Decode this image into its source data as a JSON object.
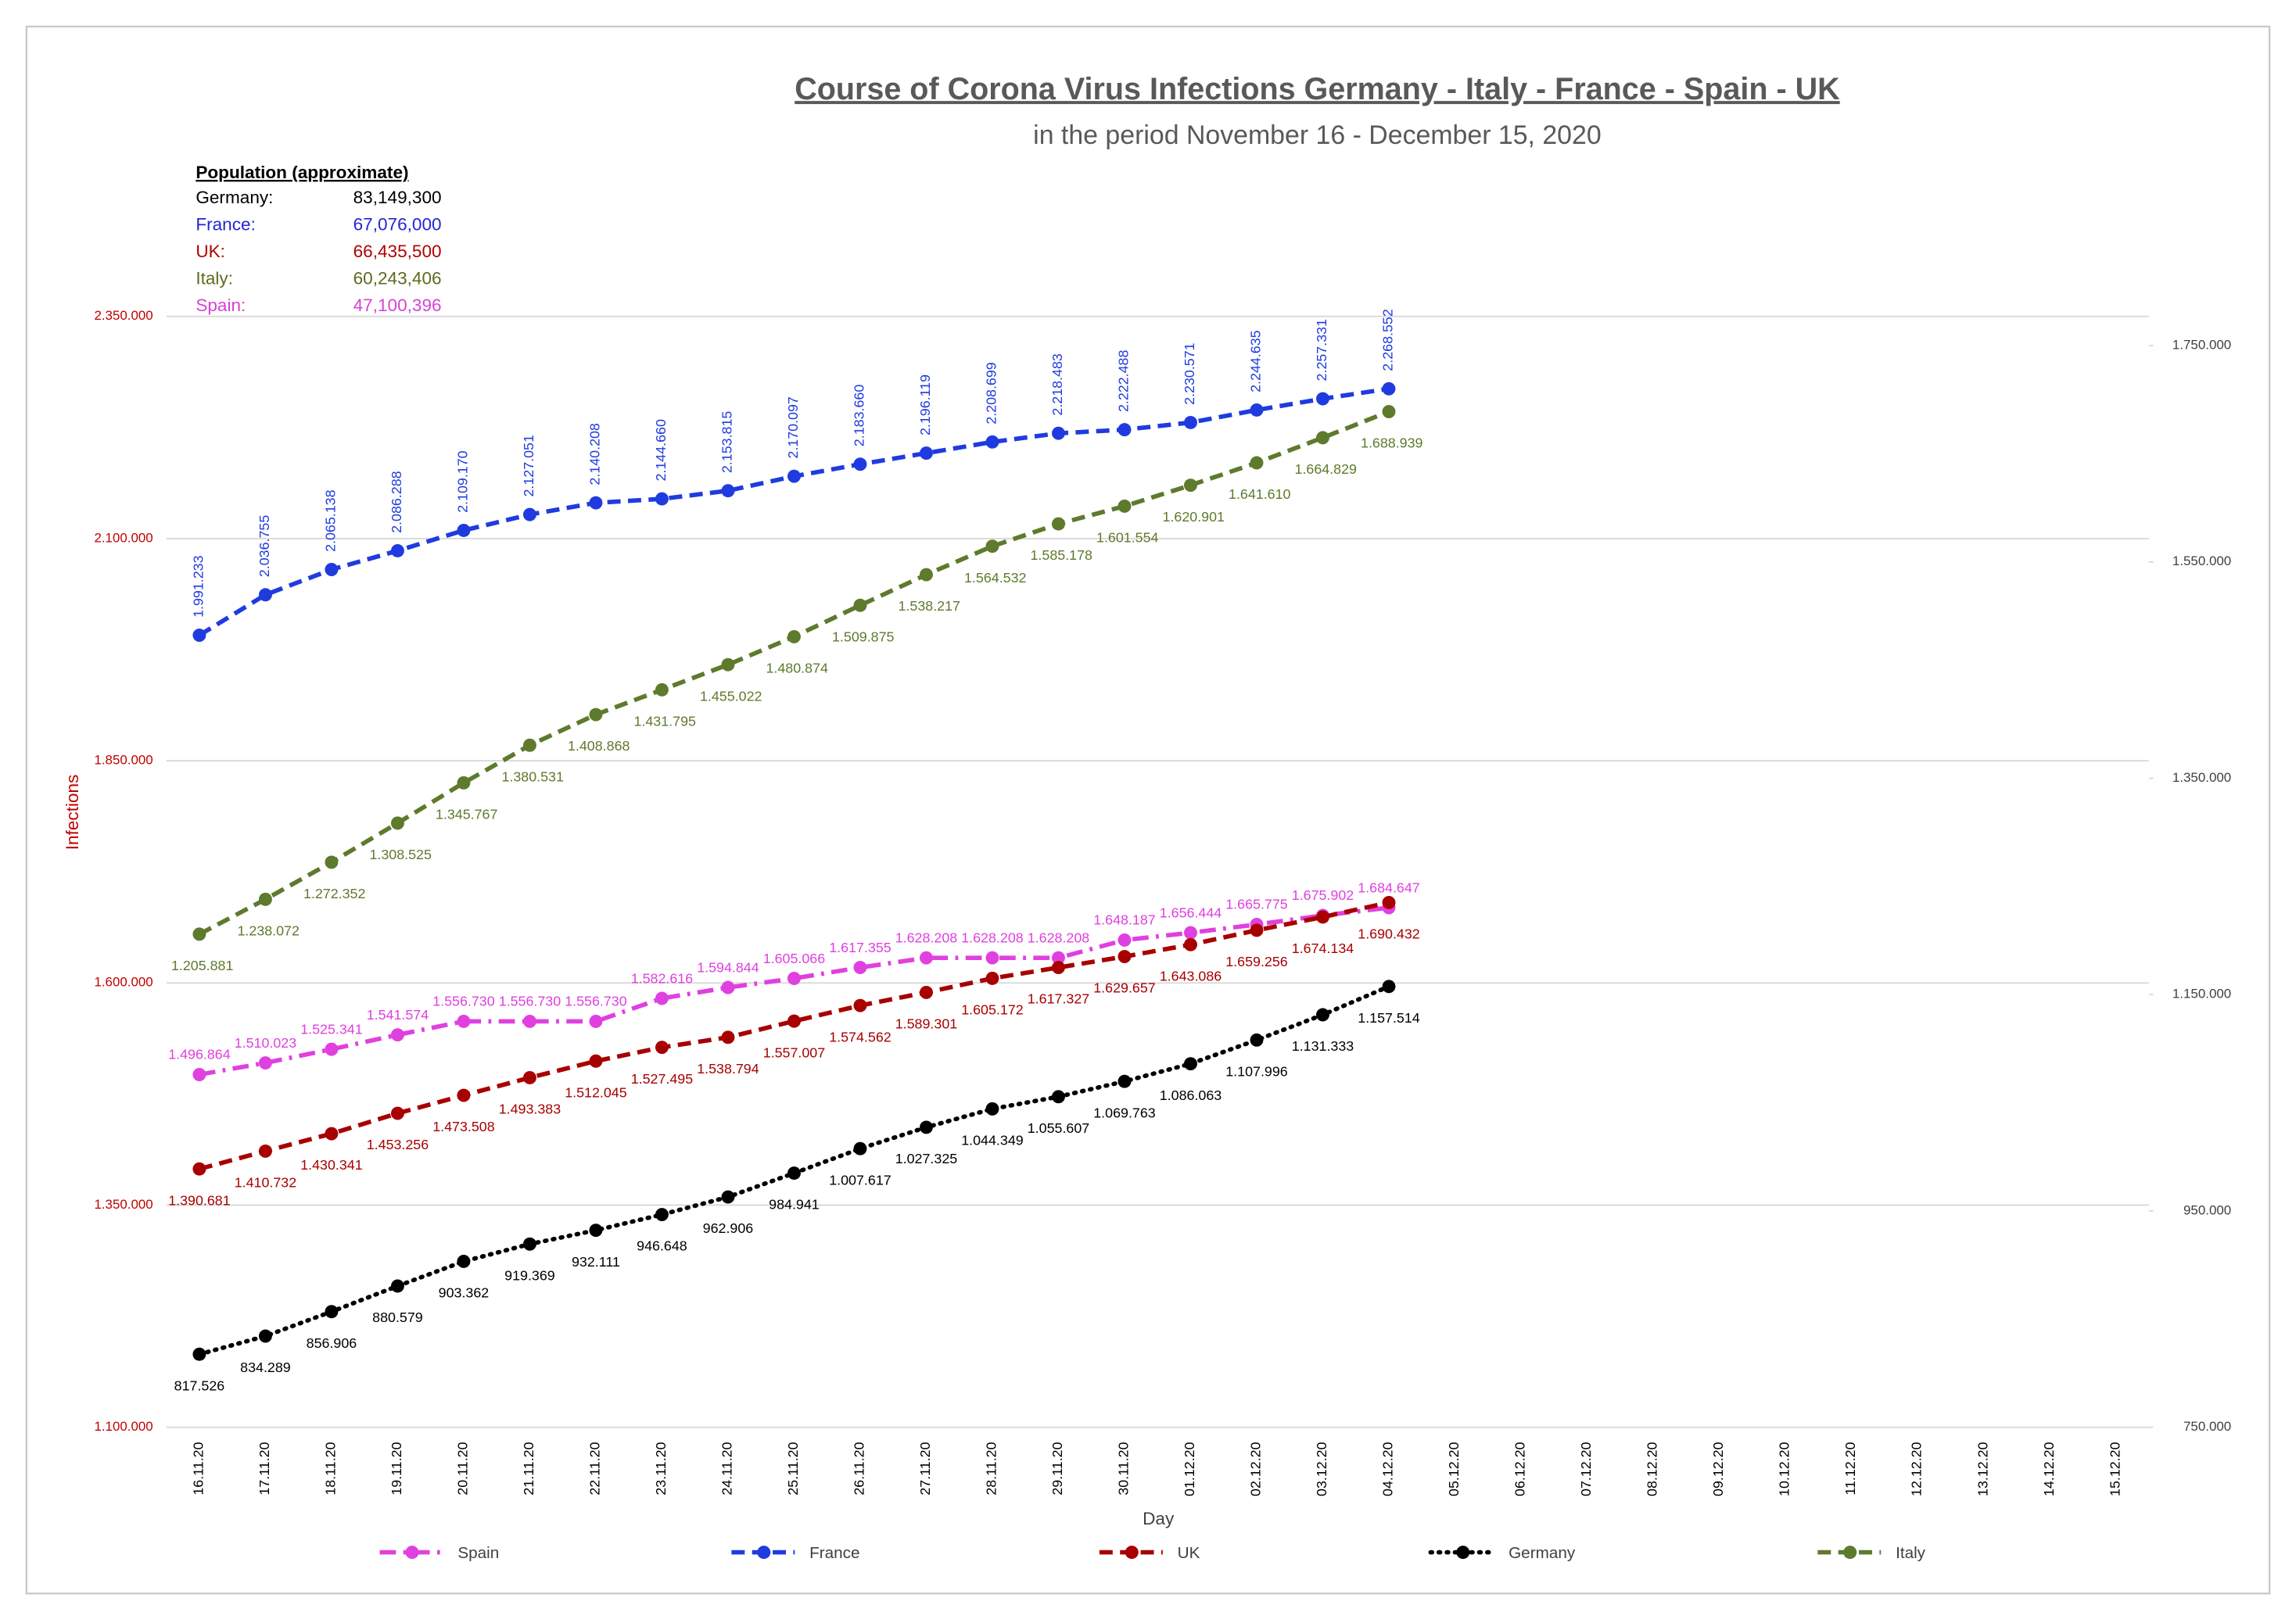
{
  "chart_data": {
    "type": "line",
    "title": "Course of Corona Virus Infections Germany - Italy - France - Spain - UK",
    "subtitle": "in the period November 16 - December 15, 2020",
    "y_label": "Infections",
    "x_label": "Day",
    "population": {
      "title": "Population (approximate)",
      "rows": [
        {
          "name": "Germany:",
          "value": "83,149,300",
          "color": "#000000"
        },
        {
          "name": "France:",
          "value": "67,076,000",
          "color": "#2424d8"
        },
        {
          "name": "UK:",
          "value": "66,435,500",
          "color": "#b00000"
        },
        {
          "name": "Italy:",
          "value": "60,243,406",
          "color": "#5b6b1f"
        },
        {
          "name": "Spain:",
          "value": "47,100,396",
          "color": "#d444d4"
        }
      ]
    },
    "categories": [
      "16.11.20",
      "17.11.20",
      "18.11.20",
      "19.11.20",
      "20.11.20",
      "21.11.20",
      "22.11.20",
      "23.11.20",
      "24.11.20",
      "25.11.20",
      "26.11.20",
      "27.11.20",
      "28.11.20",
      "29.11.20",
      "30.11.20",
      "01.12.20",
      "02.12.20",
      "03.12.20",
      "04.12.20",
      "05.12.20",
      "06.12.20",
      "07.12.20",
      "08.12.20",
      "09.12.20",
      "10.12.20",
      "11.12.20",
      "12.12.20",
      "13.12.20",
      "14.12.20",
      "15.12.20"
    ],
    "ylim": [
      1100000,
      2350000
    ],
    "yticks": [
      {
        "value": 1100000,
        "label": "1.100.000"
      },
      {
        "value": 1350000,
        "label": "1.350.000"
      },
      {
        "value": 1600000,
        "label": "1.600.000"
      },
      {
        "value": 1850000,
        "label": "1.850.000"
      },
      {
        "value": 2100000,
        "label": "2.100.000"
      },
      {
        "value": 2350000,
        "label": "2.350.000"
      }
    ],
    "y2lim": [
      750000,
      1777000
    ],
    "y2ticks": [
      {
        "value": 750000,
        "label": "750.000"
      },
      {
        "value": 950000,
        "label": "950.000"
      },
      {
        "value": 1150000,
        "label": "1.150.000"
      },
      {
        "value": 1350000,
        "label": "1.350.000"
      },
      {
        "value": 1550000,
        "label": "1.550.000"
      },
      {
        "value": 1750000,
        "label": "1.750.000"
      }
    ],
    "grid": true,
    "legend": "bottom",
    "series": [
      {
        "name": "Spain",
        "color": "#e040e0",
        "dash": "dashdot",
        "values": [
          1496864,
          1510023,
          1525341,
          1541574,
          1556730,
          1556730,
          1556730,
          1582616,
          1594844,
          1605066,
          1617355,
          1628208,
          1628208,
          1628208,
          1648187,
          1656444,
          1665775,
          1675902,
          1684647,
          null,
          null,
          null,
          null,
          null,
          null,
          null,
          null,
          null,
          null,
          null
        ],
        "value_labels": [
          "1.496.864",
          "1.510.023",
          "1.525.341",
          "1.541.574",
          "1.556.730",
          "1.556.730",
          "1.556.730",
          "1.582.616",
          "1.594.844",
          "1.605.066",
          "1.617.355",
          "1.628.208",
          "1.628.208",
          "1.628.208",
          "1.648.187",
          "1.656.444",
          "1.665.775",
          "1.675.902",
          "1.684.647",
          null,
          null,
          null,
          null,
          null,
          null,
          null,
          null,
          null,
          null,
          null
        ]
      },
      {
        "name": "France",
        "color": "#1f3be0",
        "dash": "dash",
        "values": [
          1991233,
          2036755,
          2065138,
          2086288,
          2109170,
          2127051,
          2140208,
          2144660,
          2153815,
          2170097,
          2183660,
          2196119,
          2208699,
          2218483,
          2222488,
          2230571,
          2244635,
          2257331,
          2268552,
          null,
          null,
          null,
          null,
          null,
          null,
          null,
          null,
          null,
          null,
          null
        ],
        "value_labels": [
          "1.991.233",
          "2.036.755",
          "2.065.138",
          "2.086.288",
          "2.109.170",
          "2.127.051",
          "2.140.208",
          "2.144.660",
          "2.153.815",
          "2.170.097",
          "2.183.660",
          "2.196.119",
          "2.208.699",
          "2.218.483",
          "2.222.488",
          "2.230.571",
          "2.244.635",
          "2.257.331",
          "2.268.552",
          null,
          null,
          null,
          null,
          null,
          null,
          null,
          null,
          null,
          null,
          null
        ]
      },
      {
        "name": "UK",
        "color": "#a80000",
        "dash": "dash",
        "values": [
          1390681,
          1410732,
          1430341,
          1453256,
          1473508,
          1493383,
          1512045,
          1527495,
          1538794,
          1557007,
          1574562,
          1589301,
          1605172,
          1617327,
          1629657,
          1643086,
          1659256,
          1674134,
          1690432,
          null,
          null,
          null,
          null,
          null,
          null,
          null,
          null,
          null,
          null,
          null
        ],
        "value_labels": [
          "1.390.681",
          "1.410.732",
          "1.430.341",
          "1.453.256",
          "1.473.508",
          "1.493.383",
          "1.512.045",
          "1.527.495",
          "1.538.794",
          "1.557.007",
          "1.574.562",
          "1.589.301",
          "1.605.172",
          "1.617.327",
          "1.629.657",
          "1.643.086",
          "1.659.256",
          "1.674.134",
          "1.690.432",
          null,
          null,
          null,
          null,
          null,
          null,
          null,
          null,
          null,
          null,
          null
        ]
      },
      {
        "name": "Germany",
        "color": "#000000",
        "dash": "dot",
        "axis": "y2",
        "values": [
          817526,
          834289,
          856906,
          880579,
          903362,
          919369,
          932111,
          946648,
          962906,
          984941,
          1007617,
          1027325,
          1044349,
          1055607,
          1069763,
          1086063,
          1107996,
          1131333,
          1157514,
          null,
          null,
          null,
          null,
          null,
          null,
          null,
          null,
          null,
          null,
          null
        ],
        "value_labels": [
          "817.526",
          "834.289",
          "856.906",
          "880.579",
          "903.362",
          "919.369",
          "932.111",
          "946.648",
          "962.906",
          "984.941",
          "1.007.617",
          "1.027.325",
          "1.044.349",
          "1.055.607",
          "1.069.763",
          "1.086.063",
          "1.107.996",
          "1.131.333",
          "1.157.514",
          null,
          null,
          null,
          null,
          null,
          null,
          null,
          null,
          null,
          null,
          null
        ]
      },
      {
        "name": "Italy",
        "color": "#5e7a2c",
        "dash": "dash",
        "axis": "y2",
        "values": [
          1205881,
          1238072,
          1272352,
          1308525,
          1345767,
          1380531,
          1408868,
          1431795,
          1455022,
          1480874,
          1509875,
          1538217,
          1564532,
          1585178,
          1601554,
          1620901,
          1641610,
          1664829,
          1688939,
          null,
          null,
          null,
          null,
          null,
          null,
          null,
          null,
          null,
          null,
          null
        ],
        "value_labels": [
          "1.205.881",
          "1.238.072",
          "1.272.352",
          "1.308.525",
          "1.345.767",
          "1.380.531",
          "1.408.868",
          "1.431.795",
          "1.455.022",
          "1.480.874",
          "1.509.875",
          "1.538.217",
          "1.564.532",
          "1.585.178",
          "1.601.554",
          "1.620.901",
          "1.641.610",
          "1.664.829",
          "1.688.939",
          null,
          null,
          null,
          null,
          null,
          null,
          null,
          null,
          null,
          null,
          null
        ]
      }
    ]
  }
}
